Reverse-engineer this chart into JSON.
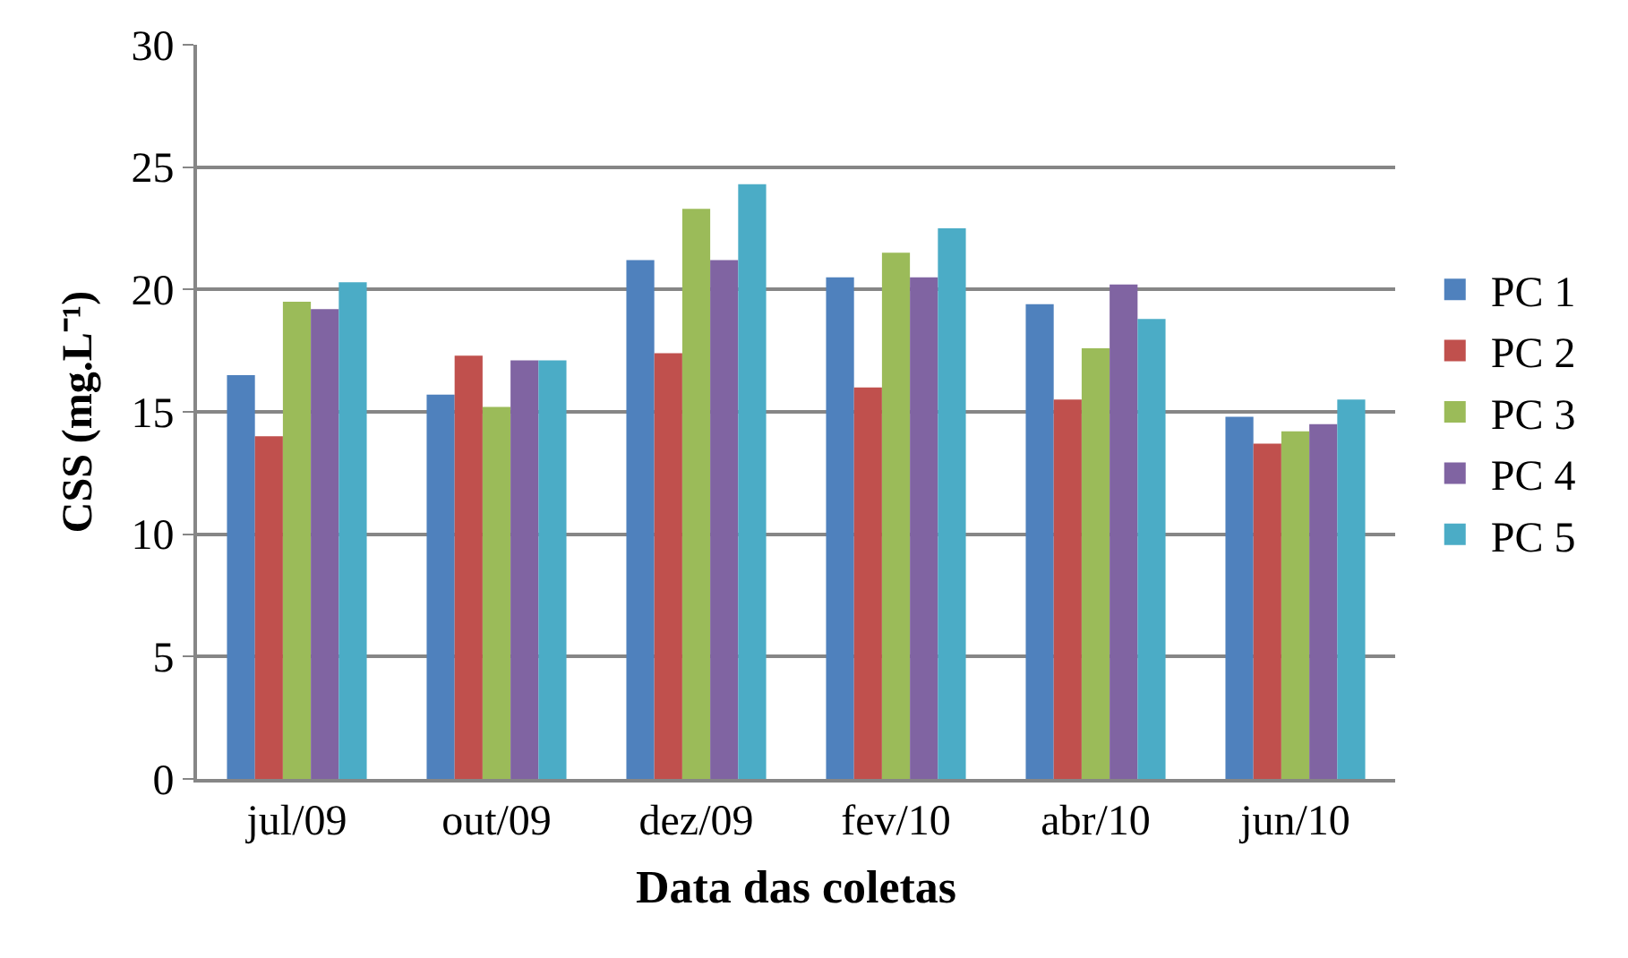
{
  "chart_data": {
    "type": "bar",
    "xlabel": "Data das coletas",
    "ylabel": "CSS (mg.L⁻¹)",
    "categories": [
      "jul/09",
      "out/09",
      "dez/09",
      "fev/10",
      "abr/10",
      "jun/10"
    ],
    "series": [
      {
        "name": "PC 1",
        "color": "#4f81bd",
        "values": [
          16.5,
          15.7,
          21.2,
          20.5,
          19.4,
          14.8
        ]
      },
      {
        "name": "PC 2",
        "color": "#c0504d",
        "values": [
          14.0,
          17.3,
          17.4,
          16.0,
          15.5,
          13.7
        ]
      },
      {
        "name": "PC 3",
        "color": "#9bbb59",
        "values": [
          19.5,
          15.2,
          23.3,
          21.5,
          17.6,
          14.2
        ]
      },
      {
        "name": "PC 4",
        "color": "#8064a2",
        "values": [
          19.2,
          17.1,
          21.2,
          20.5,
          20.2,
          14.5
        ]
      },
      {
        "name": "PC 5",
        "color": "#4bacc6",
        "values": [
          20.3,
          17.1,
          24.3,
          22.5,
          18.8,
          15.5
        ]
      }
    ],
    "ylim": [
      0,
      30
    ],
    "yticks": [
      0,
      5,
      10,
      15,
      20,
      25,
      30
    ],
    "grid": "y",
    "legend": "right"
  }
}
